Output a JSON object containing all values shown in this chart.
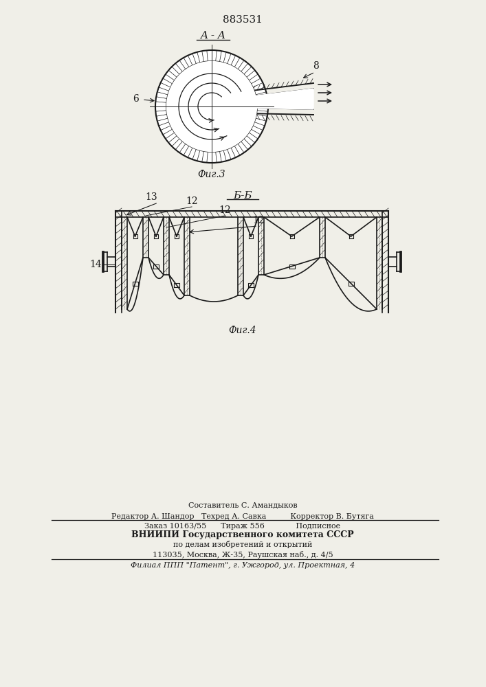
{
  "title_number": "883531",
  "fig3_label": "A - A",
  "fig3_caption": "Фиг.3",
  "fig4_label": "Б-Б",
  "fig4_caption": "Фиг.4",
  "label_6": "6",
  "label_8": "8",
  "label_12": "12",
  "label_13": "13",
  "label_14": "14",
  "footer_line1": "Составитель С. Амандыков",
  "footer_line2": "Редактор А. Шандор   Техред А. Савка          Корректор В. Бутяга",
  "footer_line3": "Заказ 10163/55      Тираж 556             Подписное",
  "footer_line4": "ВНИИПИ Государственного комитета СССР",
  "footer_line5": "по делам изобретений и открытий",
  "footer_line6": "113035, Москва, Ж-35, Раушская наб., д. 4/5",
  "footer_line7": "Филиал ППП \"Патент\", г. Ужгород, ул. Проектная, 4",
  "bg_color": "#f0efe8",
  "line_color": "#1a1a1a"
}
